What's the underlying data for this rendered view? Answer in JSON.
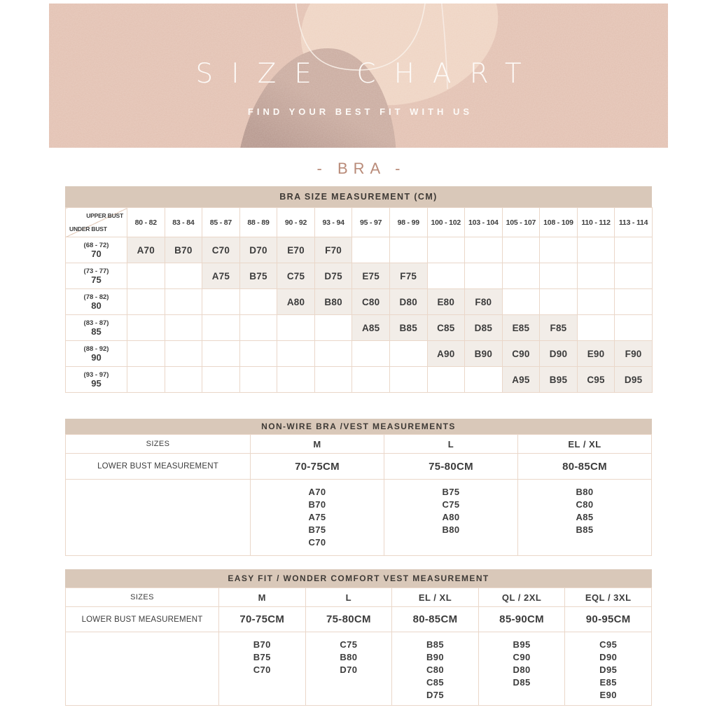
{
  "colors": {
    "banner_bg": "#e2c0b1",
    "blob_light": "#eed3c2",
    "blob_dark": "#b5968c",
    "blob_overlap": "#c9aa9e",
    "line": "#f7eee7",
    "title_text": "#fdfaf7",
    "bar_bg": "#d9c8b9",
    "bar_text": "#3e3a36",
    "accent": "#b98b79",
    "cell_fill": "#f2ede8",
    "border": "#ead7c9",
    "text_dark": "#3c3c3c"
  },
  "banner": {
    "title": "SIZE CHART",
    "subtitle": "FIND YOUR BEST FIT WITH US"
  },
  "section_title": "- BRA -",
  "bra_table": {
    "title": "BRA SIZE MEASUREMENT (CM)",
    "corner": {
      "top": "UPPER BUST",
      "bottom": "UNDER BUST"
    },
    "columns": [
      "80 - 82",
      "83 - 84",
      "85 - 87",
      "88 - 89",
      "90 - 92",
      "93 - 94",
      "95 - 97",
      "98 - 99",
      "100 - 102",
      "103 - 104",
      "105 - 107",
      "108 - 109",
      "110 - 112",
      "113 - 114"
    ],
    "rows": [
      {
        "range": "(68 - 72)",
        "base": "70",
        "cells": [
          "A70",
          "B70",
          "C70",
          "D70",
          "E70",
          "F70",
          "",
          "",
          "",
          "",
          "",
          "",
          "",
          ""
        ]
      },
      {
        "range": "(73 - 77)",
        "base": "75",
        "cells": [
          "",
          "",
          "A75",
          "B75",
          "C75",
          "D75",
          "E75",
          "F75",
          "",
          "",
          "",
          "",
          "",
          ""
        ]
      },
      {
        "range": "(78 - 82)",
        "base": "80",
        "cells": [
          "",
          "",
          "",
          "",
          "A80",
          "B80",
          "C80",
          "D80",
          "E80",
          "F80",
          "",
          "",
          "",
          ""
        ]
      },
      {
        "range": "(83 - 87)",
        "base": "85",
        "cells": [
          "",
          "",
          "",
          "",
          "",
          "",
          "A85",
          "B85",
          "C85",
          "D85",
          "E85",
          "F85",
          "",
          ""
        ]
      },
      {
        "range": "(88 - 92)",
        "base": "90",
        "cells": [
          "",
          "",
          "",
          "",
          "",
          "",
          "",
          "",
          "A90",
          "B90",
          "C90",
          "D90",
          "E90",
          "F90"
        ]
      },
      {
        "range": "(93 - 97)",
        "base": "95",
        "cells": [
          "",
          "",
          "",
          "",
          "",
          "",
          "",
          "",
          "",
          "",
          "A95",
          "B95",
          "C95",
          "D95"
        ]
      }
    ]
  },
  "nonwire_table": {
    "title": "NON-WIRE BRA /VEST MEASUREMENTS",
    "row_headers": [
      "SIZES",
      "LOWER BUST MEASUREMENT"
    ],
    "columns": [
      {
        "size": "M",
        "bust": "70-75CM",
        "items": [
          "A70",
          "B70",
          "A75",
          "B75",
          "C70"
        ]
      },
      {
        "size": "L",
        "bust": "75-80CM",
        "items": [
          "B75",
          "C75",
          "A80",
          "B80"
        ]
      },
      {
        "size": "EL / XL",
        "bust": "80-85CM",
        "items": [
          "B80",
          "C80",
          "A85",
          "B85"
        ]
      }
    ]
  },
  "easyfit_table": {
    "title": "EASY FIT / WONDER COMFORT VEST MEASUREMENT",
    "row_headers": [
      "SIZES",
      "LOWER BUST MEASUREMENT"
    ],
    "columns": [
      {
        "size": "M",
        "bust": "70-75CM",
        "items": [
          "B70",
          "B75",
          "C70"
        ]
      },
      {
        "size": "L",
        "bust": "75-80CM",
        "items": [
          "C75",
          "B80",
          "D70"
        ]
      },
      {
        "size": "EL / XL",
        "bust": "80-85CM",
        "items": [
          "B85",
          "B90",
          "C80",
          "C85",
          "D75"
        ]
      },
      {
        "size": "QL / 2XL",
        "bust": "85-90CM",
        "items": [
          "B95",
          "C90",
          "D80",
          "D85"
        ]
      },
      {
        "size": "EQL / 3XL",
        "bust": "90-95CM",
        "items": [
          "C95",
          "D90",
          "D95",
          "E85",
          "E90"
        ]
      }
    ]
  }
}
